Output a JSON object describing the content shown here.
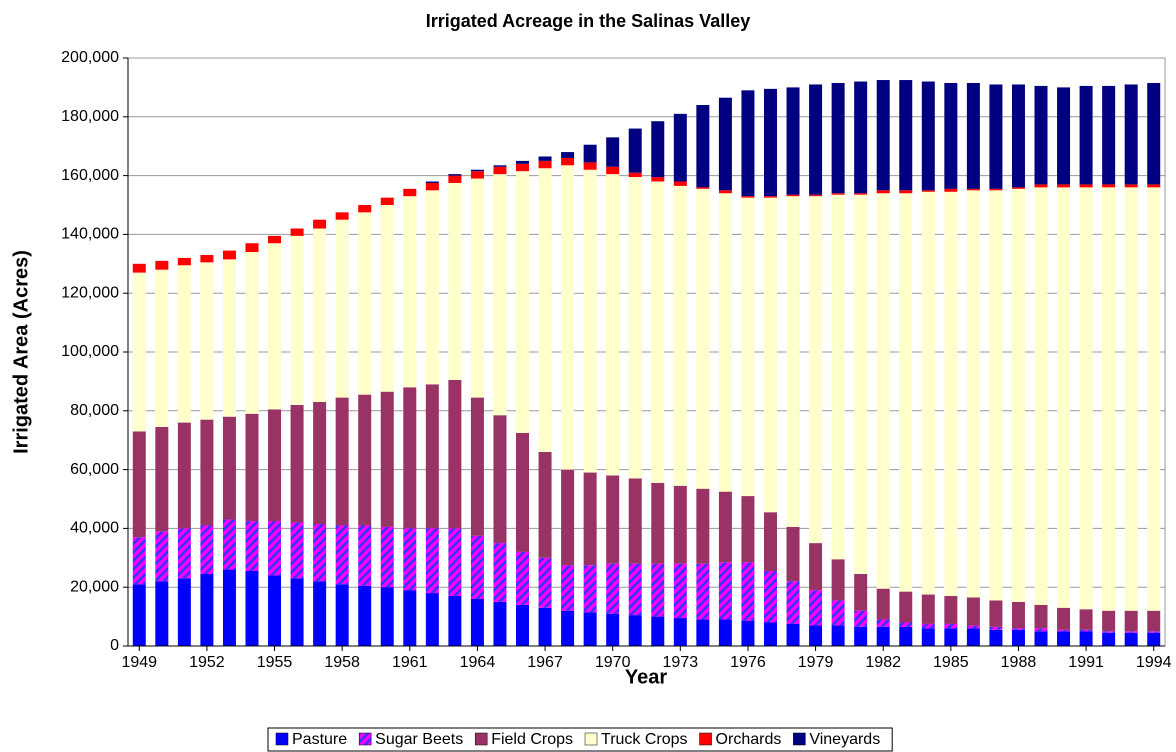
{
  "chart_data": {
    "type": "stacked_bar",
    "title": "Irrigated Acreage in the Salinas Valley",
    "x_label": "Year",
    "y_label": "Irrigated Area (Acres)",
    "categories": [
      "1949",
      null,
      null,
      "1952",
      null,
      null,
      "1955",
      null,
      null,
      "1958",
      null,
      null,
      "1961",
      null,
      null,
      "1964",
      null,
      null,
      "1967",
      null,
      null,
      "1970",
      null,
      null,
      "1973",
      null,
      null,
      "1976",
      null,
      null,
      "1979",
      null,
      null,
      "1982",
      null,
      null,
      "1985",
      null,
      null,
      "1988",
      null,
      null,
      "1991",
      null,
      null,
      "1994"
    ],
    "ylim": [
      0,
      200000
    ],
    "yticks": [
      0,
      {
        "value": 20000,
        "label": "20,000"
      },
      {
        "value": 40000,
        "label": "40,000"
      },
      {
        "value": 60000,
        "label": "60,000"
      },
      {
        "value": 80000,
        "label": "80,000"
      },
      {
        "value": 100000,
        "label": "100,000"
      },
      {
        "value": 120000,
        "label": "120,000"
      },
      {
        "value": 140000,
        "label": "140,000"
      },
      {
        "value": 160000,
        "label": "160,000"
      },
      {
        "value": 180000,
        "label": "180,000"
      },
      {
        "value": 200000,
        "label": "200,000"
      }
    ],
    "grid": true,
    "legend": "bottom",
    "series": [
      {
        "name": "Pasture",
        "color": "#0000ff",
        "values": [
          21000,
          22000,
          23000,
          24500,
          26000,
          25500,
          24000,
          23000,
          22000,
          21000,
          20500,
          20000,
          19000,
          18000,
          17000,
          16000,
          15000,
          14000,
          13000,
          12000,
          11500,
          11000,
          10500,
          10000,
          9500,
          9000,
          9000,
          8500,
          8000,
          7500,
          7000,
          7000,
          6500,
          6500,
          6500,
          6000,
          6000,
          6000,
          5500,
          5500,
          5000,
          5000,
          5000,
          4500,
          4500,
          4500
        ]
      },
      {
        "name": "Sugar Beets",
        "color": "#ff00ff",
        "hatch": true,
        "values": [
          16000,
          17000,
          17000,
          16500,
          17000,
          17000,
          18500,
          19000,
          19500,
          20000,
          20500,
          20500,
          21000,
          22000,
          23000,
          21500,
          20000,
          18000,
          17000,
          15500,
          16000,
          17000,
          17500,
          18000,
          18500,
          19000,
          19500,
          20000,
          17500,
          14500,
          12000,
          8500,
          5500,
          2500,
          1500,
          1500,
          1500,
          1000,
          1000,
          500,
          1000,
          500,
          500,
          500,
          500,
          500
        ]
      },
      {
        "name": "Field Crops",
        "color": "#993366",
        "values": [
          36000,
          35500,
          36000,
          36000,
          35000,
          36500,
          38000,
          40000,
          41500,
          43500,
          44500,
          46000,
          48000,
          49000,
          50500,
          47000,
          43500,
          40500,
          36000,
          32500,
          31500,
          30000,
          29000,
          27500,
          26500,
          25500,
          24000,
          22500,
          20000,
          18500,
          16000,
          14000,
          12500,
          10500,
          10500,
          10000,
          9500,
          9500,
          9000,
          9000,
          8000,
          7500,
          7000,
          7000,
          7000,
          7000
        ]
      },
      {
        "name": "Truck Crops",
        "color": "#ffffcc",
        "values": [
          54000,
          53500,
          53500,
          53500,
          53500,
          55000,
          56500,
          57500,
          59000,
          60500,
          62000,
          63500,
          65000,
          66000,
          67000,
          74500,
          82000,
          89000,
          96500,
          103500,
          103000,
          102500,
          102500,
          102500,
          102000,
          102000,
          101500,
          101500,
          107000,
          112500,
          118000,
          124000,
          129000,
          134500,
          135500,
          137000,
          137500,
          138500,
          139500,
          140500,
          142000,
          143000,
          143500,
          144000,
          144000,
          144000
        ]
      },
      {
        "name": "Orchards",
        "color": "#ff0000",
        "values": [
          3000,
          3000,
          2500,
          2500,
          3000,
          3000,
          2500,
          2500,
          3000,
          2500,
          2500,
          2500,
          2500,
          2500,
          2500,
          2500,
          2500,
          2500,
          2500,
          2500,
          2500,
          2500,
          1500,
          1500,
          1500,
          500,
          1000,
          500,
          500,
          500,
          500,
          500,
          500,
          1000,
          1000,
          500,
          1000,
          500,
          500,
          500,
          1000,
          1000,
          1000,
          1000,
          1000,
          1000
        ]
      },
      {
        "name": "Vineyards",
        "color": "#000080",
        "values": [
          0,
          0,
          0,
          0,
          0,
          0,
          0,
          0,
          0,
          0,
          0,
          0,
          0,
          500,
          500,
          500,
          500,
          1000,
          1500,
          2000,
          6000,
          10000,
          15000,
          19000,
          23000,
          28000,
          31500,
          36000,
          36500,
          36500,
          37500,
          37500,
          38000,
          37500,
          37500,
          37000,
          36000,
          36000,
          35500,
          35000,
          33500,
          33000,
          33500,
          33500,
          34000,
          34500
        ]
      }
    ]
  }
}
